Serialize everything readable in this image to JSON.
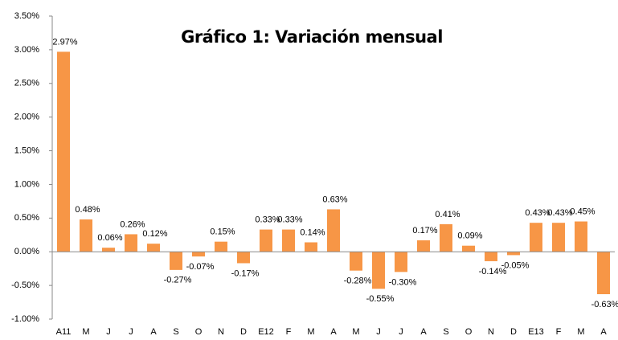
{
  "chart_data": {
    "type": "bar",
    "title": "Gráfico 1: Variación mensual",
    "categories": [
      "A11",
      "M",
      "J",
      "J",
      "A",
      "S",
      "O",
      "N",
      "D",
      "E12",
      "F",
      "M",
      "A",
      "M",
      "J",
      "J",
      "A",
      "S",
      "O",
      "N",
      "D",
      "E13",
      "F",
      "M",
      "A"
    ],
    "values": [
      2.97,
      0.48,
      0.06,
      0.26,
      0.12,
      -0.27,
      -0.07,
      0.15,
      -0.17,
      0.33,
      0.33,
      0.14,
      0.63,
      -0.28,
      -0.55,
      -0.3,
      0.17,
      0.41,
      0.09,
      -0.14,
      -0.05,
      0.43,
      0.43,
      0.45,
      -0.63
    ],
    "value_labels": [
      "2.97%",
      "0.48%",
      "0.06%",
      "0.26%",
      "0.12%",
      "-0.27%",
      "-0.07%",
      "0.15%",
      "-0.17%",
      "0.33%",
      "0.33%",
      "0.14%",
      "0.63%",
      "-0.28%",
      "-0.55%",
      "-0.30%",
      "0.17%",
      "0.41%",
      "0.09%",
      "-0.14%",
      "-0.05%",
      "0.43%",
      "0.43%",
      "0.45%",
      "-0.63%"
    ],
    "color": "#f79646",
    "ylim": [
      -1.0,
      3.5
    ],
    "yticks": [
      {
        "value": -1.0,
        "label": "-1.00%"
      },
      {
        "value": -0.5,
        "label": "-0.50%"
      },
      {
        "value": 0,
        "label": "0.00%"
      },
      {
        "value": 0.5,
        "label": "0.50%"
      },
      {
        "value": 1.0,
        "label": "1.00%"
      },
      {
        "value": 1.5,
        "label": "1.50%"
      },
      {
        "value": 2.0,
        "label": "2.00%"
      },
      {
        "value": 2.5,
        "label": "2.50%"
      },
      {
        "value": 3.0,
        "label": "3.00%"
      },
      {
        "value": 3.5,
        "label": "3.50%"
      }
    ],
    "grid": false
  }
}
